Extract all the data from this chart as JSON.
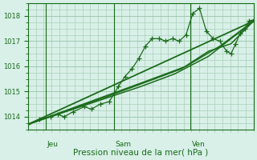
{
  "bg_color": "#d8f0e8",
  "grid_color": "#a0c8b0",
  "line_color": "#1a6b1a",
  "marker_color": "#1a6b1a",
  "xlabel": "Pression niveau de la mer( hPa )",
  "xlabel_color": "#1a6b1a",
  "tick_color": "#1a6b1a",
  "axis_color": "#1a6b1a",
  "ylim": [
    1013.5,
    1018.5
  ],
  "yticks": [
    1014,
    1015,
    1016,
    1017,
    1018
  ],
  "day_labels": [
    "Jeu",
    "Sam",
    "Ven"
  ],
  "day_positions": [
    0.08,
    0.38,
    0.72
  ],
  "series": [
    [
      0.0,
      1013.7,
      0.05,
      1013.9,
      0.1,
      1014.0,
      0.13,
      1014.1,
      0.16,
      1014.0,
      0.2,
      1014.2,
      0.25,
      1014.4,
      0.28,
      1014.3,
      0.32,
      1014.5,
      0.36,
      1014.6,
      0.4,
      1015.2,
      0.43,
      1015.6,
      0.46,
      1015.9,
      0.49,
      1016.3,
      0.52,
      1016.8,
      0.55,
      1017.1,
      0.58,
      1017.1,
      0.61,
      1017.0,
      0.64,
      1017.1,
      0.67,
      1017.0,
      0.7,
      1017.25,
      0.73,
      1018.1,
      0.76,
      1018.3,
      0.79,
      1017.4,
      0.82,
      1017.1,
      0.85,
      1017.0,
      0.88,
      1016.6,
      0.9,
      1016.5,
      0.92,
      1016.9,
      0.94,
      1017.3,
      0.96,
      1017.5,
      0.98,
      1017.8,
      1.0,
      1017.85
    ],
    [
      0.0,
      1013.7,
      0.35,
      1014.8,
      0.5,
      1015.3,
      0.68,
      1015.9,
      0.8,
      1016.6,
      0.9,
      1016.9,
      1.0,
      1017.8
    ],
    [
      0.0,
      1013.7,
      0.55,
      1015.5,
      0.7,
      1016.0,
      0.85,
      1016.8,
      1.0,
      1017.8
    ],
    [
      0.0,
      1013.7,
      0.5,
      1015.2,
      0.65,
      1015.7,
      0.8,
      1016.4,
      1.0,
      1017.8
    ],
    [
      0.0,
      1013.7,
      1.0,
      1017.8
    ]
  ]
}
